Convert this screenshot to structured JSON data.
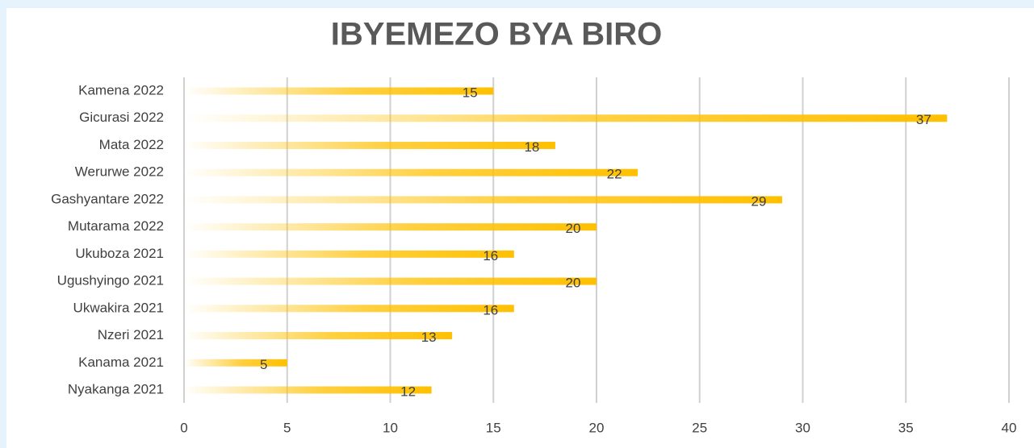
{
  "chart_data": {
    "type": "bar",
    "orientation": "horizontal",
    "title": "IBYEMEZO BYA BIRO",
    "categories": [
      "Kamena 2022",
      "Gicurasi 2022",
      "Mata 2022",
      "Werurwe 2022",
      "Gashyantare 2022",
      "Mutarama 2022",
      "Ukuboza 2021",
      "Ugushyingo 2021",
      "Ukwakira 2021",
      "Nzeri 2021",
      "Kanama 2021",
      "Nyakanga 2021"
    ],
    "values": [
      15,
      37,
      18,
      22,
      29,
      20,
      16,
      20,
      16,
      13,
      5,
      12
    ],
    "color": "#ffc000",
    "xlim": [
      0,
      40
    ],
    "xticks": [
      0,
      5,
      10,
      15,
      20,
      25,
      30,
      35,
      40
    ],
    "grid": true
  }
}
